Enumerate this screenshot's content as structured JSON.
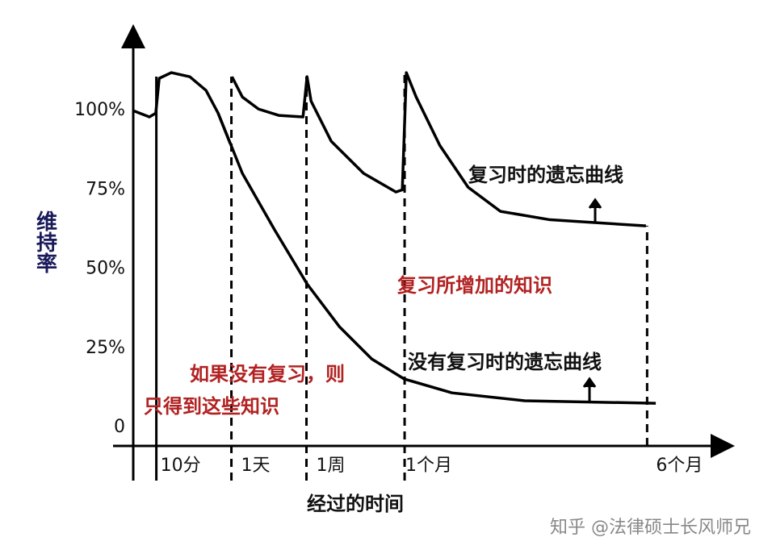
{
  "chart_data": {
    "type": "line",
    "y_label": "维持率",
    "x_label": "经过的时间",
    "ylim": [
      0,
      125
    ],
    "yticks": [
      0,
      {
        "value": 25,
        "label": "25%"
      },
      {
        "value": 50,
        "label": "50%"
      },
      {
        "value": 75,
        "label": "75%"
      },
      {
        "value": 100,
        "label": "100%"
      }
    ],
    "xlim": [
      0,
      100
    ],
    "xticks": [
      {
        "value": 4,
        "label": "10分"
      },
      {
        "value": 17,
        "label": "1天"
      },
      {
        "value": 30,
        "label": "1周"
      },
      {
        "value": 47,
        "label": "1个月"
      },
      {
        "value": 89,
        "label": "6个月"
      }
    ],
    "series": [
      {
        "name": "复习时的遗忘曲线",
        "color": "#000000",
        "x": [
          0,
          2.8,
          3.9,
          4.5,
          6.6,
          9.8,
          12.6,
          14.7,
          16.8,
          null,
          17.1,
          18.9,
          21.7,
          25.2,
          29.4,
          30.1,
          30.8,
          34.3,
          39.9,
          45.5,
          46.6,
          47.3,
          49,
          53.1,
          58,
          63.6,
          72,
          88.8
        ],
        "values": [
          100,
          98,
          99.2,
          110.2,
          112,
          110.7,
          106.4,
          99.2,
          89.6,
          null,
          110.7,
          104.3,
          100.5,
          98.5,
          98,
          110.7,
          103,
          90.3,
          80.2,
          74.3,
          75,
          112,
          104.3,
          89,
          75.8,
          68.2,
          65.6,
          63.6
        ]
      },
      {
        "name": "没有复习时的遗忘曲线",
        "color": "#000000",
        "x": [
          14.7,
          18.9,
          24.5,
          30.1,
          35.7,
          41.3,
          46.9,
          55.2,
          67.8,
          90.5
        ],
        "values": [
          99.2,
          80.2,
          62.3,
          45.3,
          31.8,
          21.6,
          15.3,
          10.9,
          8.4,
          7.6
        ]
      }
    ],
    "annotations": [
      {
        "text": "复习所增加的知识",
        "color": "#b22222"
      },
      {
        "text": "如果没有复习，则",
        "color": "#b22222"
      },
      {
        "text": "只得到这些知识",
        "color": "#b22222"
      }
    ],
    "watermark": "知乎 @法律硕士长风师兄"
  }
}
